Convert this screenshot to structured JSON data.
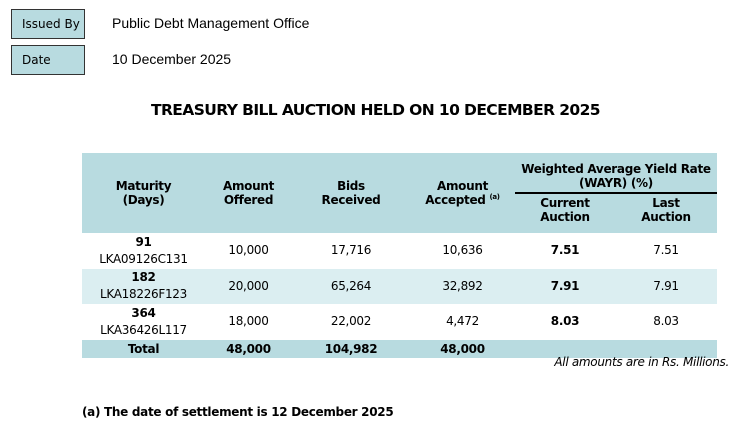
{
  "header": {
    "issued_by_label": "Issued By",
    "issued_by_value": "Public Debt Management Office",
    "date_label": "Date",
    "date_value": "10 December 2025"
  },
  "title": "TREASURY BILL AUCTION HELD ON 10 DECEMBER 2025",
  "table": {
    "columns": {
      "maturity": "Maturity",
      "maturity2": "(Days)",
      "offered": "Amount",
      "offered2": "Offered",
      "bids": "Bids",
      "bids2": "Received",
      "accepted": "Amount",
      "accepted2": "Accepted",
      "accepted_sup": "(a)",
      "wayr": "Weighted Average Yield Rate",
      "wayr2": "(WAYR) (%)",
      "current": "Current",
      "current2": "Auction",
      "last": "Last",
      "last2": "Auction"
    },
    "rows": [
      {
        "days": "91",
        "isin": "LKA09126C131",
        "offered": "10,000",
        "bids": "17,716",
        "accepted": "10,636",
        "current": "7.51",
        "last": "7.51"
      },
      {
        "days": "182",
        "isin": "LKA18226F123",
        "offered": "20,000",
        "bids": "65,264",
        "accepted": "32,892",
        "current": "7.91",
        "last": "7.91"
      },
      {
        "days": "364",
        "isin": "LKA36426L117",
        "offered": "18,000",
        "bids": "22,002",
        "accepted": "4,472",
        "current": "8.03",
        "last": "8.03"
      }
    ],
    "total": {
      "label": "Total",
      "offered": "48,000",
      "bids": "104,982",
      "accepted": "48,000"
    }
  },
  "note": "All amounts are in Rs. Millions.",
  "footnote": "(a) The date of settlement is 12 December 2025",
  "colors": {
    "header_bg": "#b8dbe0",
    "alt_row_bg": "#dbeef1"
  }
}
